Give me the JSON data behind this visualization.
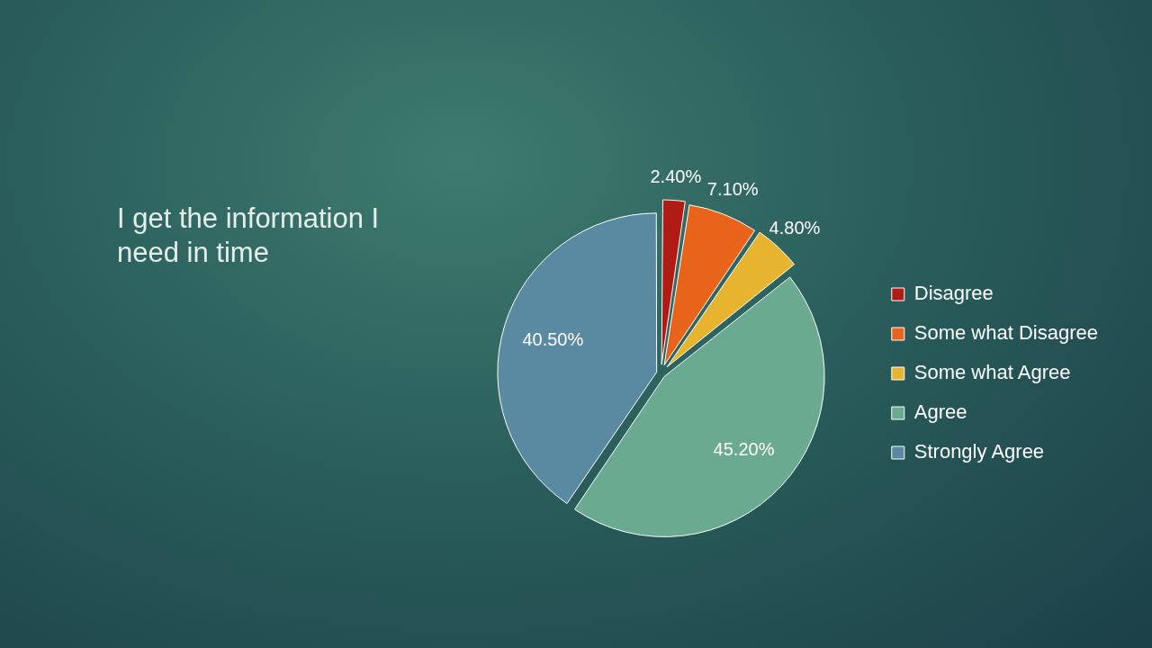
{
  "chart_data": {
    "type": "pie",
    "title": "I get the information I need in time",
    "categories": [
      "Disagree",
      "Some what Disagree",
      "Some what Agree",
      "Agree",
      "Strongly Agree"
    ],
    "values": [
      2.4,
      7.1,
      4.8,
      45.2,
      40.5
    ],
    "colors": [
      "#b01c14",
      "#e8641a",
      "#e6b42e",
      "#6aaa90",
      "#5a8aa2"
    ],
    "value_labels": [
      "2.40%",
      "7.10%",
      "4.80%",
      "45.20%",
      "40.50%"
    ],
    "legend": "right"
  }
}
